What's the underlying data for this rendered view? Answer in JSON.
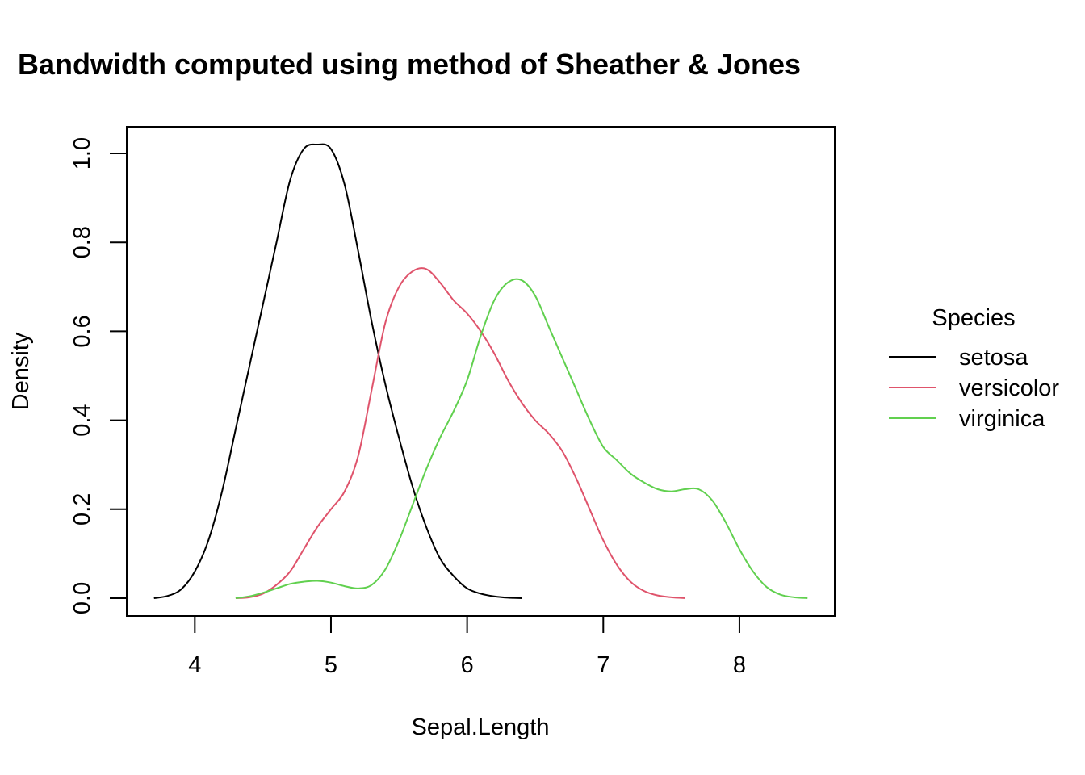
{
  "chart_data": {
    "type": "line",
    "title": "Bandwidth computed using method of Sheather & Jones",
    "xlabel": "Sepal.Length",
    "ylabel": "Density",
    "xlim": [
      3.5,
      8.7
    ],
    "ylim": [
      -0.04,
      1.06
    ],
    "x_ticks": [
      "4",
      "5",
      "6",
      "7",
      "8"
    ],
    "y_ticks": [
      "0.0",
      "0.2",
      "0.4",
      "0.6",
      "0.8",
      "1.0"
    ],
    "grid": false,
    "legend": {
      "title": "Species",
      "placement": "right"
    },
    "series": [
      {
        "name": "setosa",
        "color": "#000000",
        "x": [
          3.7,
          3.8,
          3.9,
          4.0,
          4.1,
          4.2,
          4.3,
          4.4,
          4.5,
          4.6,
          4.7,
          4.8,
          4.9,
          5.0,
          5.1,
          5.2,
          5.3,
          5.4,
          5.5,
          5.6,
          5.7,
          5.8,
          5.9,
          6.0,
          6.1,
          6.2,
          6.3,
          6.4
        ],
        "y": [
          0.0,
          0.005,
          0.02,
          0.06,
          0.13,
          0.24,
          0.38,
          0.52,
          0.66,
          0.8,
          0.94,
          1.01,
          1.02,
          1.01,
          0.93,
          0.78,
          0.62,
          0.48,
          0.36,
          0.25,
          0.16,
          0.09,
          0.05,
          0.022,
          0.01,
          0.004,
          0.001,
          0.0
        ]
      },
      {
        "name": "versicolor",
        "color": "#DF536B",
        "x": [
          4.3,
          4.4,
          4.5,
          4.6,
          4.7,
          4.8,
          4.9,
          5.0,
          5.1,
          5.2,
          5.3,
          5.4,
          5.5,
          5.6,
          5.7,
          5.8,
          5.9,
          6.0,
          6.1,
          6.2,
          6.3,
          6.4,
          6.5,
          6.6,
          6.7,
          6.8,
          6.9,
          7.0,
          7.1,
          7.2,
          7.3,
          7.4,
          7.5,
          7.6
        ],
        "y": [
          0.0,
          0.002,
          0.01,
          0.03,
          0.06,
          0.11,
          0.16,
          0.2,
          0.24,
          0.32,
          0.47,
          0.62,
          0.7,
          0.735,
          0.74,
          0.71,
          0.67,
          0.64,
          0.6,
          0.55,
          0.49,
          0.44,
          0.4,
          0.37,
          0.33,
          0.27,
          0.2,
          0.13,
          0.075,
          0.037,
          0.016,
          0.006,
          0.002,
          0.0
        ]
      },
      {
        "name": "virginica",
        "color": "#61D04F",
        "x": [
          4.3,
          4.4,
          4.5,
          4.6,
          4.7,
          4.8,
          4.9,
          5.0,
          5.1,
          5.2,
          5.3,
          5.4,
          5.5,
          5.6,
          5.7,
          5.8,
          5.9,
          6.0,
          6.1,
          6.2,
          6.3,
          6.4,
          6.5,
          6.6,
          6.7,
          6.8,
          6.9,
          7.0,
          7.1,
          7.2,
          7.3,
          7.4,
          7.5,
          7.6,
          7.7,
          7.8,
          7.9,
          8.0,
          8.1,
          8.2,
          8.3,
          8.4,
          8.5
        ],
        "y": [
          0.0,
          0.004,
          0.012,
          0.022,
          0.032,
          0.037,
          0.039,
          0.035,
          0.027,
          0.022,
          0.03,
          0.065,
          0.13,
          0.21,
          0.29,
          0.36,
          0.42,
          0.49,
          0.59,
          0.67,
          0.71,
          0.715,
          0.68,
          0.61,
          0.54,
          0.47,
          0.4,
          0.34,
          0.31,
          0.28,
          0.26,
          0.245,
          0.24,
          0.245,
          0.245,
          0.22,
          0.17,
          0.11,
          0.06,
          0.025,
          0.008,
          0.002,
          0.0
        ]
      }
    ]
  }
}
